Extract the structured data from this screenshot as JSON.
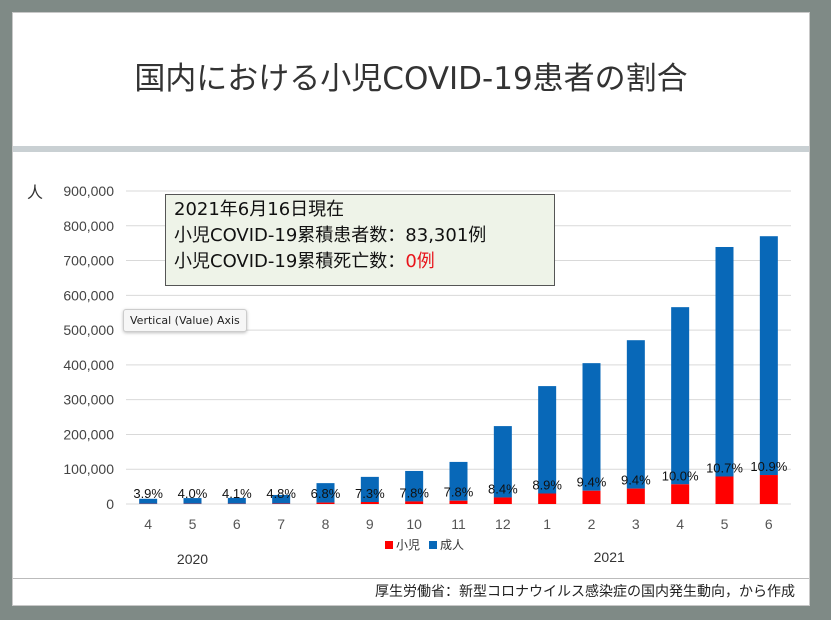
{
  "title": "国内における小児COVID-19患者の割合",
  "info_box": {
    "line1": "2021年6月16日現在",
    "line2": "小児COVID-19累積患者数：83,301例",
    "line3_prefix": "小児COVID-19累積死亡数：",
    "line3_value": "0例"
  },
  "tooltip": "Vertical (Value) Axis",
  "source": "厚生労働省：新型コロナウイルス感染症の国内発生動向，から作成",
  "colors": {
    "child": "#ff0000",
    "adult": "#0868b8"
  },
  "chart_data": {
    "type": "bar",
    "stacked": true,
    "ylabel": "人",
    "ylim": [
      0,
      900000
    ],
    "yticks": [
      "0",
      "100,000",
      "200,000",
      "300,000",
      "400,000",
      "500,000",
      "600,000",
      "700,000",
      "800,000",
      "900,000"
    ],
    "categories": [
      "4",
      "5",
      "6",
      "7",
      "8",
      "9",
      "10",
      "11",
      "12",
      "1",
      "2",
      "3",
      "4",
      "5",
      "6"
    ],
    "year_labels": [
      "2020",
      "2021"
    ],
    "series": [
      {
        "name": "小児",
        "values": [
          600,
          700,
          700,
          1250,
          4100,
          5700,
          7400,
          9400,
          18800,
          30200,
          38100,
          44300,
          56600,
          79100,
          83300
        ]
      },
      {
        "name": "成人",
        "values": [
          14400,
          16300,
          16800,
          24750,
          55900,
          72300,
          87600,
          111600,
          205200,
          308800,
          366900,
          426700,
          509400,
          659900,
          686700
        ]
      }
    ],
    "data_labels": [
      "3.9%",
      "4.0%",
      "4.1%",
      "4.8%",
      "6.8%",
      "7.3%",
      "7.8%",
      "7.8%",
      "8.4%",
      "8.9%",
      "9.4%",
      "9.4%",
      "10.0%",
      "10.7%",
      "10.9%"
    ],
    "grid": true,
    "legend_position": "bottom"
  }
}
